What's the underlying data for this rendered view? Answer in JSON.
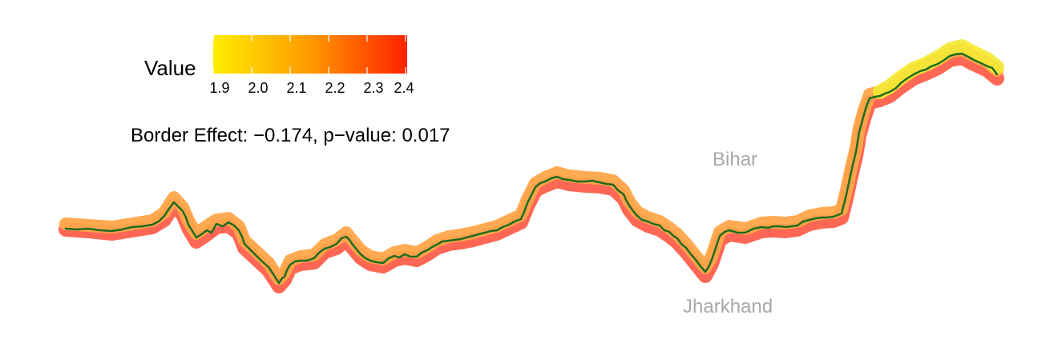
{
  "legend": {
    "title": "Value",
    "ticks": [
      "1.9",
      "2.0",
      "2.1",
      "2.2",
      "2.3",
      "2.4"
    ],
    "min": 1.9,
    "max": 2.4,
    "colors": {
      "low": "#ffee00",
      "mid": "#ff9900",
      "high": "#ff2200"
    }
  },
  "annotation": "Border Effect: −0.174, p−value: 0.017",
  "regions": {
    "north": "Bihar",
    "south": "Jharkhand"
  },
  "colors": {
    "border_line": "#1f6b1f",
    "high_side": "#ff4a3a",
    "mid_side": "#ffa040",
    "low_side": "#f5ea2a",
    "region_label": "#a8a8a8"
  }
}
